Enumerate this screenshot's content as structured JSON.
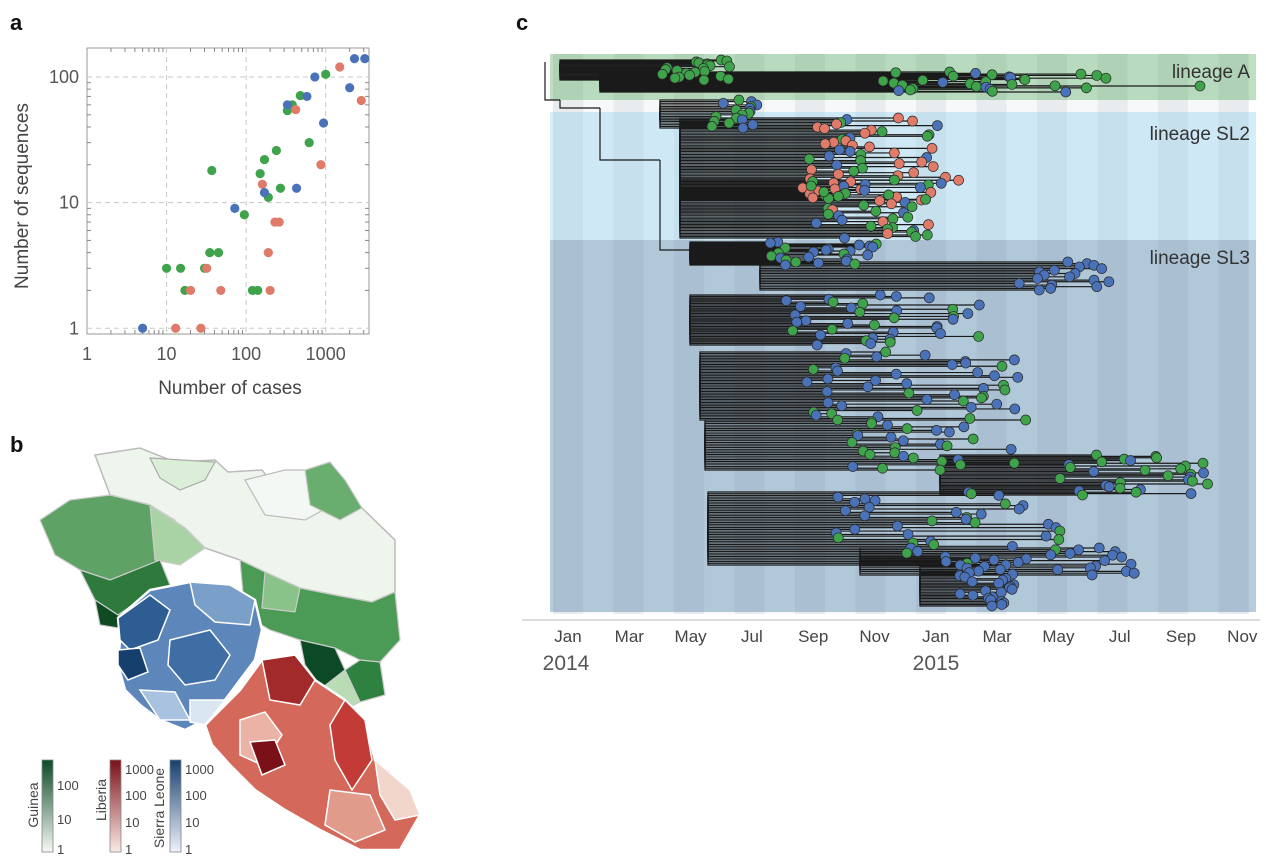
{
  "panel_a": {
    "letter": "a"
  },
  "panel_b": {
    "letter": "b"
  },
  "panel_c": {
    "letter": "c"
  },
  "colors": {
    "guinea": "#3ea34a",
    "liberia": "#e07b6a",
    "sierra_leone": "#4a72b8"
  },
  "chart_data": [
    {
      "type": "scatter",
      "title": "",
      "xlabel": "Number of cases",
      "ylabel": "Number of sequences",
      "xscale": "log",
      "yscale": "log",
      "xlim": [
        1,
        3500
      ],
      "ylim": [
        0.9,
        170
      ],
      "xticks": [
        1,
        10,
        100,
        1000
      ],
      "xtick_labels": [
        "1",
        "10",
        "100",
        "1000"
      ],
      "yticks": [
        1,
        10,
        100
      ],
      "ytick_labels": [
        "1",
        "10",
        "100"
      ],
      "grid": true,
      "series": [
        {
          "color": "#3ea34a",
          "points": [
            [
              10,
              3
            ],
            [
              15,
              3
            ],
            [
              17,
              2
            ],
            [
              30,
              3
            ],
            [
              35,
              4
            ],
            [
              45,
              4
            ],
            [
              37,
              18
            ],
            [
              95,
              8
            ],
            [
              120,
              2
            ],
            [
              140,
              2
            ],
            [
              150,
              17
            ],
            [
              170,
              22
            ],
            [
              190,
              11
            ],
            [
              240,
              26
            ],
            [
              270,
              13
            ],
            [
              330,
              54
            ],
            [
              380,
              60
            ],
            [
              480,
              71
            ],
            [
              620,
              30
            ],
            [
              1000,
              105
            ]
          ]
        },
        {
          "color": "#e07b6a",
          "points": [
            [
              13,
              1
            ],
            [
              20,
              2
            ],
            [
              27,
              1
            ],
            [
              32,
              3
            ],
            [
              48,
              2
            ],
            [
              160,
              14
            ],
            [
              190,
              4
            ],
            [
              200,
              2
            ],
            [
              230,
              7
            ],
            [
              260,
              7
            ],
            [
              420,
              55
            ],
            [
              870,
              20
            ],
            [
              1500,
              120
            ],
            [
              2800,
              65
            ]
          ]
        },
        {
          "color": "#4a72b8",
          "points": [
            [
              5,
              1
            ],
            [
              72,
              9
            ],
            [
              170,
              12
            ],
            [
              330,
              60
            ],
            [
              430,
              13
            ],
            [
              580,
              70
            ],
            [
              730,
              100
            ],
            [
              940,
              43
            ],
            [
              2000,
              82
            ],
            [
              2300,
              140
            ],
            [
              3100,
              140
            ]
          ]
        }
      ]
    },
    {
      "type": "map",
      "title": "",
      "legend": [
        {
          "title": "Guinea",
          "tick_labels": [
            "1",
            "10",
            "100"
          ],
          "color_low": "#f6faf5",
          "color_high": "#0c4a25"
        },
        {
          "title": "Liberia",
          "tick_labels": [
            "1",
            "10",
            "100",
            "1000"
          ],
          "color_low": "#fbeae6",
          "color_high": "#7a1018"
        },
        {
          "title": "Sierra Leone",
          "tick_labels": [
            "1",
            "10",
            "100",
            "1000"
          ],
          "color_low": "#eef3fb",
          "color_high": "#163f6e"
        }
      ]
    },
    {
      "type": "tree",
      "title": "",
      "month_labels": [
        "Jan",
        "Mar",
        "May",
        "Jul",
        "Sep",
        "Nov",
        "Jan",
        "Mar",
        "May",
        "Jul",
        "Sep",
        "Nov"
      ],
      "year_labels": [
        "2014",
        "2015"
      ],
      "lineage_labels": [
        "lineage A",
        "lineage SL2",
        "lineage SL3"
      ]
    }
  ]
}
